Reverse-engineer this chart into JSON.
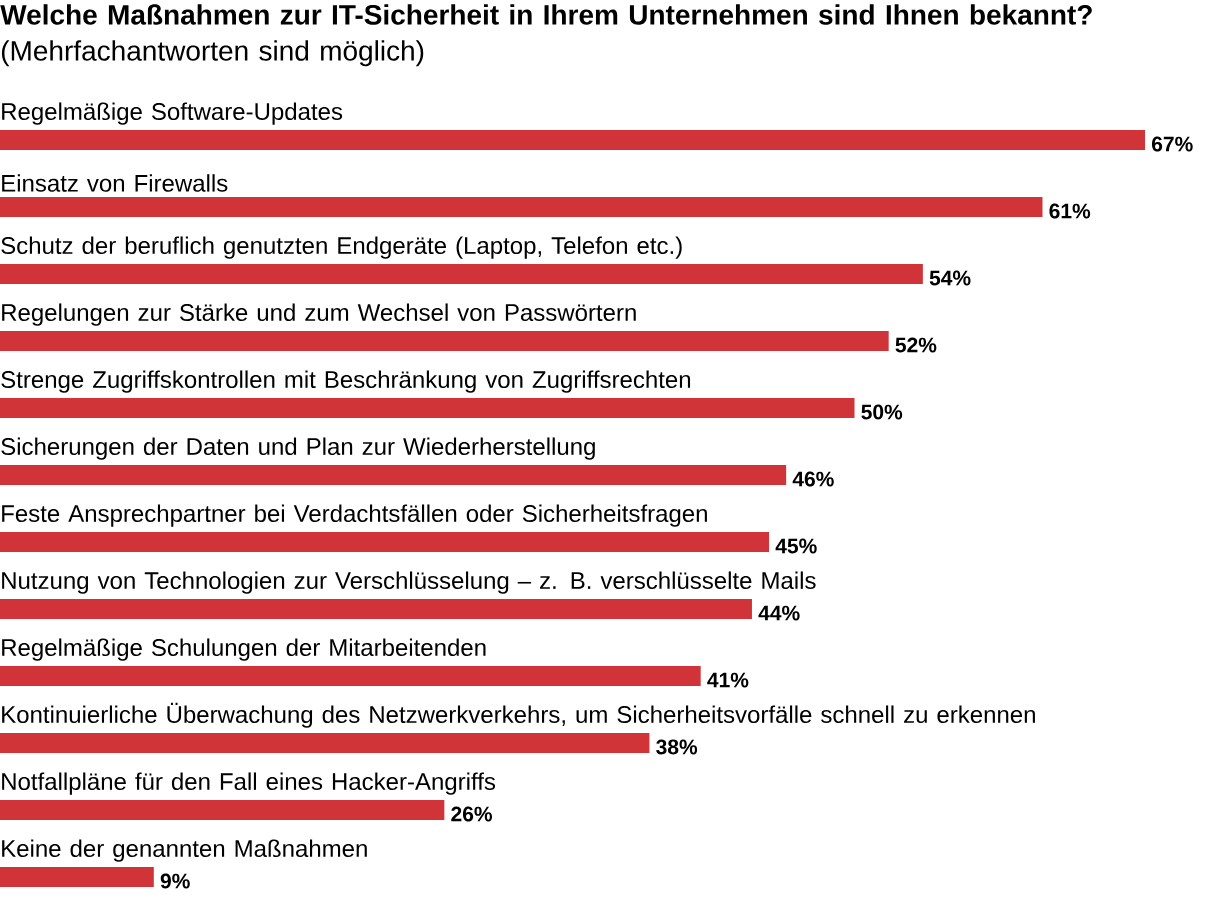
{
  "chart_data": {
    "type": "bar",
    "orientation": "horizontal",
    "title": "**Welche Maßnahmen zur IT-Sicherheit in Ihrem Unternehmen sind Ihnen bekannt?** (Mehrfachantworten sind möglich)",
    "categories": [
      "Regelmäßige Software-Updates",
      "Einsatz von Firewalls",
      "Schutz der beruflich genutzten Endgeräte (Laptop, Telefon etc.)",
      "Regelungen zur Stärke und zum Wechsel von Passwörtern",
      "Strenge Zugriffskontrollen mit Beschränkung von Zugriffsrechten",
      "Sicherungen der Daten und Plan zur Wiederherstellung",
      "Feste Ansprechpartner bei Verdachtsfällen oder Sicherheitsfragen",
      "Nutzung von Technologien zur Verschlüsselung – z. B. verschlüsselte Mails",
      "Regelmäßige Schulungen der Mitarbeitenden",
      "Kontinuierliche Überwachung des Netzwerkverkehrs, um Sicherheitsvorfälle schnell zu erkennen",
      "Notfallpläne für den Fall eines Hacker-Angriffs",
      "Keine der genannten Maßnahmen"
    ],
    "values": [
      67,
      61,
      54,
      52,
      50,
      46,
      45,
      44,
      41,
      38,
      26,
      9
    ],
    "value_labels": [
      "67%",
      "61%",
      "54%",
      "52%",
      "50%",
      "46%",
      "45%",
      "44%",
      "41%",
      "38%",
      "26%",
      "9%"
    ],
    "color": "#d13438"
  }
}
